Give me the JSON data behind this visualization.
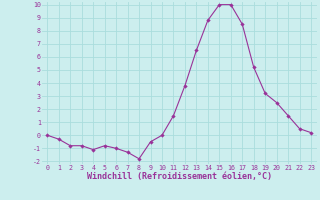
{
  "x": [
    0,
    1,
    2,
    3,
    4,
    5,
    6,
    7,
    8,
    9,
    10,
    11,
    12,
    13,
    14,
    15,
    16,
    17,
    18,
    19,
    20,
    21,
    22,
    23
  ],
  "y": [
    0.0,
    -0.3,
    -0.8,
    -0.8,
    -1.1,
    -0.8,
    -1.0,
    -1.3,
    -1.8,
    -0.5,
    0.0,
    1.5,
    3.8,
    6.5,
    8.8,
    10.0,
    10.0,
    8.5,
    5.2,
    3.2,
    2.5,
    1.5,
    0.5,
    0.2
  ],
  "line_color": "#993399",
  "marker": "D",
  "marker_size": 2.2,
  "bg_color": "#cceeee",
  "grid_color": "#aadddd",
  "xlabel": "Windchill (Refroidissement éolien,°C)",
  "xlabel_color": "#993399",
  "tick_color": "#993399",
  "ylim": [
    -2,
    10
  ],
  "xlim": [
    -0.5,
    23.5
  ],
  "yticks": [
    -2,
    -1,
    0,
    1,
    2,
    3,
    4,
    5,
    6,
    7,
    8,
    9,
    10
  ],
  "xticks": [
    0,
    1,
    2,
    3,
    4,
    5,
    6,
    7,
    8,
    9,
    10,
    11,
    12,
    13,
    14,
    15,
    16,
    17,
    18,
    19,
    20,
    21,
    22,
    23
  ]
}
